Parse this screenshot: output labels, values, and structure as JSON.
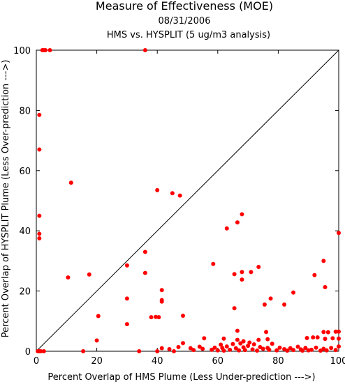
{
  "chart_data": {
    "type": "scatter",
    "title": "Measure of Effectiveness (MOE)",
    "subtitle_date": "08/31/2006",
    "subtitle": "HMS vs. HYSPLIT  (5 ug/m3 analysis)",
    "xlabel": "Percent Overlap of HMS Plume (Less Under-prediction --->)",
    "ylabel": "Percent Overlap of HYSPLIT Plume (Less Over-prediction --->)",
    "xlim": [
      0,
      100
    ],
    "ylim": [
      0,
      100
    ],
    "xticks": [
      0,
      20,
      40,
      60,
      80,
      100
    ],
    "yticks": [
      0,
      20,
      40,
      60,
      80,
      100
    ],
    "grid": false,
    "reference_line": "diagonal y = x",
    "colors": {
      "points": "#ff0000",
      "axes": "#000000",
      "diagonal": "#000000"
    },
    "series": [
      {
        "points": [
          [
            2,
            100
          ],
          [
            2.5,
            100
          ],
          [
            3,
            100
          ],
          [
            4.5,
            100
          ],
          [
            36,
            100
          ],
          [
            1,
            78.5
          ],
          [
            1,
            67
          ],
          [
            11.5,
            56
          ],
          [
            40,
            53.5
          ],
          [
            45,
            52.5
          ],
          [
            47.5,
            51.7
          ],
          [
            1,
            45
          ],
          [
            1,
            39
          ],
          [
            1,
            37.5
          ],
          [
            68,
            45.5
          ],
          [
            66.5,
            42.8
          ],
          [
            63,
            40.8
          ],
          [
            100,
            39.3
          ],
          [
            36,
            33
          ],
          [
            30,
            28.5
          ],
          [
            58.5,
            29
          ],
          [
            10.5,
            24.5
          ],
          [
            17.5,
            25.5
          ],
          [
            36,
            26
          ],
          [
            65.5,
            25.6
          ],
          [
            68,
            26.3
          ],
          [
            68,
            23.8
          ],
          [
            71,
            26.3
          ],
          [
            73.5,
            28
          ],
          [
            77.5,
            17.5
          ],
          [
            92,
            25.3
          ],
          [
            95,
            30
          ],
          [
            95.5,
            21.3
          ],
          [
            41.5,
            20.3
          ],
          [
            41.5,
            17
          ],
          [
            41.5,
            16.5
          ],
          [
            30,
            17.5
          ],
          [
            75.5,
            15.5
          ],
          [
            85,
            19.5
          ],
          [
            82,
            15.5
          ],
          [
            65.5,
            14.3
          ],
          [
            20.5,
            11.7
          ],
          [
            38,
            11.3
          ],
          [
            39.5,
            11.4
          ],
          [
            40.5,
            11.3
          ],
          [
            30,
            9
          ],
          [
            48.5,
            11.8
          ],
          [
            20,
            3.6
          ],
          [
            66.5,
            6.8
          ],
          [
            76,
            6.4
          ],
          [
            95,
            6.4
          ],
          [
            96.5,
            6.3
          ],
          [
            99,
            6.5
          ],
          [
            100,
            6.5
          ],
          [
            55.5,
            4.3
          ],
          [
            62,
            4.2
          ],
          [
            66.5,
            3.8
          ],
          [
            68.5,
            3.3
          ],
          [
            70.5,
            2.9
          ],
          [
            73.5,
            3.8
          ],
          [
            76.5,
            4
          ],
          [
            89.5,
            4.4
          ],
          [
            91.5,
            4.6
          ],
          [
            93,
            4.6
          ],
          [
            95.5,
            4.1
          ],
          [
            98,
            4.3
          ],
          [
            100,
            4.2
          ],
          [
            0.5,
            0
          ],
          [
            1,
            0
          ],
          [
            1.5,
            0
          ],
          [
            2.5,
            0
          ],
          [
            15.5,
            0
          ],
          [
            34,
            0
          ],
          [
            40,
            0
          ],
          [
            41.5,
            1
          ],
          [
            44,
            0.7
          ],
          [
            45.5,
            0
          ],
          [
            47,
            1.4
          ],
          [
            48.5,
            2.7
          ],
          [
            51,
            1
          ],
          [
            52,
            0.4
          ],
          [
            54,
            1.5
          ],
          [
            55,
            0.8
          ],
          [
            58,
            0.5
          ],
          [
            59,
            1.2
          ],
          [
            60,
            0.3
          ],
          [
            61,
            2.2
          ],
          [
            61.5,
            1.1
          ],
          [
            62,
            0.2
          ],
          [
            63,
            1.6
          ],
          [
            64,
            0.5
          ],
          [
            65,
            2.4
          ],
          [
            66,
            1
          ],
          [
            67,
            0.3
          ],
          [
            67.5,
            2.6
          ],
          [
            68.5,
            1.3
          ],
          [
            69,
            0.4
          ],
          [
            70,
            1.8
          ],
          [
            71.5,
            0.6
          ],
          [
            72,
            2.3
          ],
          [
            73,
            0.2
          ],
          [
            74,
            1.4
          ],
          [
            75,
            0.8
          ],
          [
            76.5,
            1.1
          ],
          [
            77,
            0.5
          ],
          [
            78,
            2.5
          ],
          [
            79.5,
            0.3
          ],
          [
            80.5,
            1.2
          ],
          [
            82,
            0.7
          ],
          [
            83,
            0.2
          ],
          [
            84,
            1
          ],
          [
            85,
            0.4
          ],
          [
            86.5,
            1.5
          ],
          [
            87.5,
            0.6
          ],
          [
            88,
            0.2
          ],
          [
            89,
            1.1
          ],
          [
            90,
            0.3
          ],
          [
            91,
            0.5
          ],
          [
            92.5,
            1.2
          ],
          [
            94,
            0.2
          ],
          [
            95,
            0.8
          ],
          [
            96,
            0.3
          ],
          [
            97.5,
            1.1
          ],
          [
            99,
            0.4
          ],
          [
            100,
            1.6
          ]
        ]
      }
    ]
  }
}
